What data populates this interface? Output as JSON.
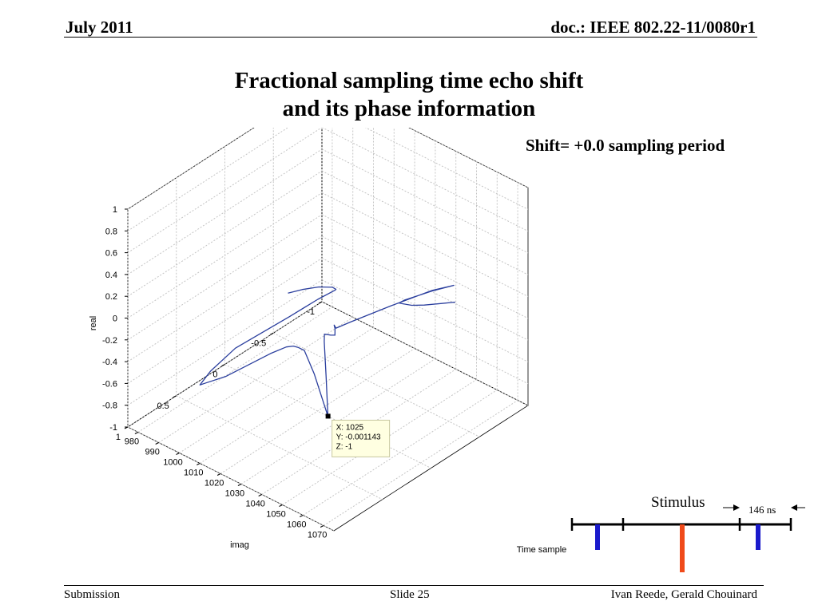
{
  "header": {
    "date": "July 2011",
    "doc": "doc.: IEEE 802.22-11/0080r1"
  },
  "slide": {
    "title_line1": "Fractional sampling time echo shift",
    "title_line2": "and its phase information",
    "subtitle": "Shift= +0.0 sampling period"
  },
  "footer": {
    "left": "Submission",
    "center": "Slide 25",
    "right": "Ivan Reede, Gerald Chouinard"
  },
  "chart_data": {
    "type": "line",
    "projection": "3d",
    "xlabel": "Time sample",
    "ylabel": "imag",
    "zlabel": "real",
    "x_ticks": [
      980,
      990,
      1000,
      1010,
      1020,
      1030,
      1040,
      1050,
      1060,
      1070
    ],
    "y_ticks": [
      -1,
      -0.5,
      0,
      0.5,
      1
    ],
    "z_ticks": [
      -1,
      -0.8,
      -0.6,
      -0.4,
      -0.2,
      0,
      0.2,
      0.4,
      0.6,
      0.8,
      1
    ],
    "x_tick_labels": [
      "980",
      "990",
      "1000",
      "1010",
      "1020",
      "1030",
      "1040",
      "1050",
      "1060",
      "1070"
    ],
    "y_tick_labels": [
      "-1",
      "-0.5",
      "0",
      "0.5",
      "1"
    ],
    "z_tick_labels": [
      "-1",
      "-0.8",
      "-0.6",
      "-0.4",
      "-0.2",
      "0",
      "0.2",
      "0.4",
      "0.6",
      "0.8",
      "1"
    ],
    "xlim": [
      975,
      1075
    ],
    "ylim": [
      -1,
      1
    ],
    "zlim": [
      -1,
      1
    ],
    "grid": true,
    "line_color": "#2b3f9e",
    "series": [
      {
        "points": [
          [
            975,
            -0.65,
            -0.72
          ],
          [
            982,
            -0.65,
            -0.62
          ],
          [
            990,
            -0.65,
            -0.52
          ],
          [
            998,
            -0.62,
            -0.43
          ],
          [
            1003,
            -0.55,
            -0.36
          ],
          [
            1005,
            -0.5,
            -0.32
          ],
          [
            1006,
            -0.3,
            -0.28
          ],
          [
            1006.5,
            0.0,
            -0.26
          ],
          [
            1006,
            0.55,
            -0.24
          ],
          [
            1008,
            0.85,
            -0.26
          ],
          [
            1010,
            1.0,
            -0.28
          ],
          [
            1013,
            0.8,
            -0.29
          ],
          [
            1016,
            0.4,
            -0.28
          ],
          [
            1018,
            0.28,
            -0.27
          ],
          [
            1020,
            0.25,
            -0.26
          ],
          [
            1022,
            0.24,
            -0.26
          ],
          [
            1023,
            0.2,
            -0.3
          ],
          [
            1024,
            0.12,
            -0.55
          ],
          [
            1025,
            0.0,
            -1.0
          ],
          [
            1026,
            0.04,
            -0.6
          ],
          [
            1027,
            0.08,
            -0.25
          ],
          [
            1028,
            0.1,
            -0.16
          ],
          [
            1030,
            0.11,
            -0.14
          ],
          [
            1032,
            0.12,
            -0.12
          ],
          [
            1034,
            0.12,
            -0.1
          ],
          [
            1035,
            0.14,
            -0.08
          ],
          [
            1036,
            0.16,
            0.0
          ],
          [
            1036.5,
            0.18,
            0.05
          ],
          [
            1036,
            0.15,
            0.0
          ],
          [
            1036,
            0.0,
            -0.03
          ],
          [
            1037,
            -0.4,
            -0.1
          ],
          [
            1038,
            -0.8,
            -0.18
          ],
          [
            1039,
            -1.0,
            -0.24
          ],
          [
            1040,
            -0.75,
            -0.14
          ],
          [
            1041,
            -0.45,
            -0.04
          ],
          [
            1043,
            -0.35,
            0.01
          ],
          [
            1047,
            -0.3,
            0.07
          ],
          [
            1053,
            -0.27,
            0.13
          ],
          [
            1060,
            -0.25,
            0.21
          ],
          [
            1068,
            -0.25,
            0.3
          ],
          [
            1075,
            -0.25,
            0.38
          ]
        ]
      }
    ],
    "datatip": {
      "x": 1025,
      "y": -0.001143,
      "z": -1,
      "lines": [
        "X: 1025",
        "Y: -0.001143",
        "Z: -1"
      ]
    }
  },
  "legend_diagram": {
    "stimulus_label": "Stimulus",
    "interval_label": "146 ns",
    "timeline_color": "#000000",
    "echo_color": "#1a1acc",
    "stimulus_color": "#f04a1a"
  }
}
